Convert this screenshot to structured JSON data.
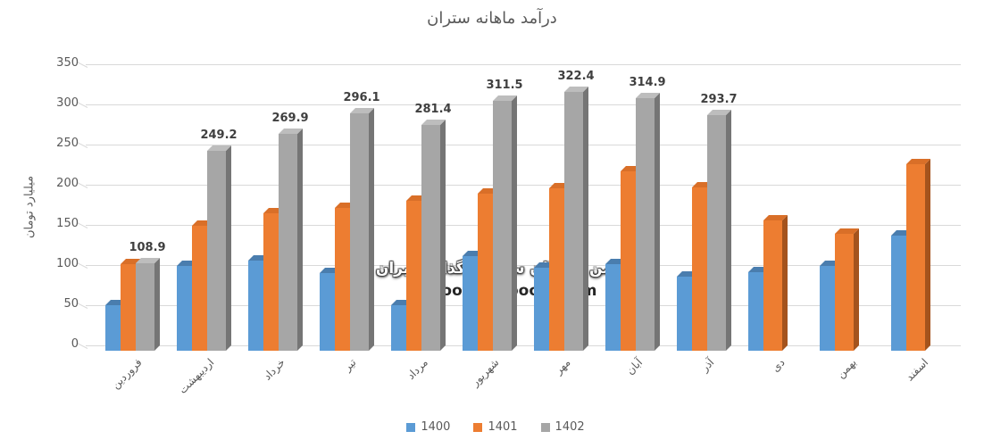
{
  "chart_data": {
    "type": "bar",
    "style": "3d-clustered-column",
    "title": "درآمد ماهانه ستران",
    "xlabel": "",
    "ylabel": "میلیارد تومان",
    "ylim": [
      0,
      350
    ],
    "yticks": [
      0,
      50,
      100,
      150,
      200,
      250,
      300,
      350
    ],
    "grid": true,
    "legend_position": "bottom-center",
    "categories": [
      "فروردین",
      "اردیبهشت",
      "خرداد",
      "تیر",
      "مرداد",
      "شهریور",
      "مهر",
      "آبان",
      "آذر",
      "دی",
      "بهمن",
      "اسفند"
    ],
    "series": [
      {
        "name": "1400",
        "color": "#5B9BD5",
        "top_color": "#4A7DAE",
        "side_color": "#41719C",
        "data_labels": false,
        "values": [
          57,
          105,
          112,
          97,
          57,
          118,
          103,
          108,
          92,
          98,
          106,
          143
        ]
      },
      {
        "name": "1401",
        "color": "#ED7D31",
        "top_color": "#D96F28",
        "side_color": "#A4531D",
        "data_labels": false,
        "values": [
          108,
          155,
          171,
          178,
          187,
          195,
          202,
          223,
          203,
          162,
          145,
          232
        ]
      },
      {
        "name": "1402",
        "color": "#A6A6A6",
        "top_color": "#BDBDBD",
        "side_color": "#757575",
        "data_labels": true,
        "values": [
          108.9,
          249.2,
          269.9,
          296.1,
          281.4,
          311.5,
          322.4,
          314.9,
          293.7,
          null,
          null,
          null
        ]
      }
    ]
  },
  "watermark": {
    "line1": "انجمن خبرگان سرمایه گذاری ایران",
    "line2": "Amoozesh-boors.com"
  },
  "colors": {
    "grid": "#D9D9D9",
    "axis_text": "#595959",
    "data_label": "#3F3F3F",
    "background": "#FFFFFF"
  }
}
